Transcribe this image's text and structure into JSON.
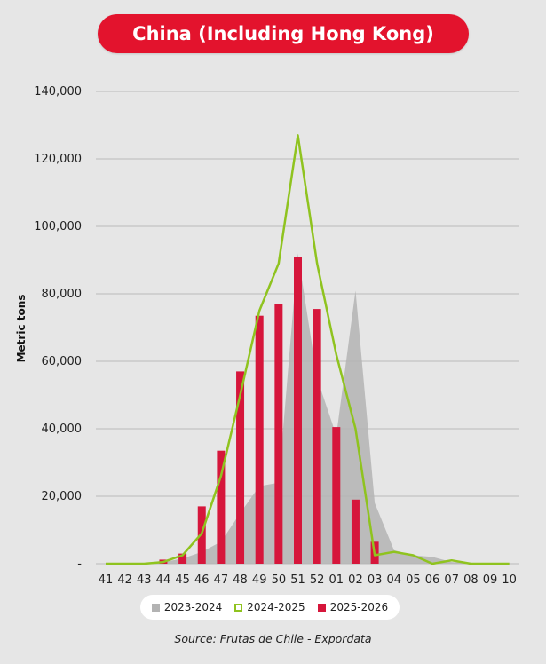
{
  "title": "China (Including Hong Kong)",
  "source": "Source: Frutas de Chile - Expordata",
  "chart_data": {
    "type": "bar",
    "title": "China (Including Hong Kong)",
    "ylabel": "Metric tons",
    "xlabel": "",
    "ylim": [
      0,
      140000
    ],
    "yticks": [
      0,
      20000,
      40000,
      60000,
      80000,
      100000,
      120000,
      140000
    ],
    "ytick_labels": [
      "-",
      "20,000",
      "40,000",
      "60,000",
      "80,000",
      "100,000",
      "120,000",
      "140,000"
    ],
    "grid": true,
    "legend_position": "bottom",
    "categories": [
      "41",
      "42",
      "43",
      "44",
      "45",
      "46",
      "47",
      "48",
      "49",
      "50",
      "51",
      "52",
      "01",
      "02",
      "03",
      "04",
      "05",
      "06",
      "07",
      "08",
      "09",
      "10"
    ],
    "series": [
      {
        "name": "2023-2024",
        "type": "area",
        "color": "#b3b3b3",
        "values": [
          0,
          0,
          200,
          500,
          1500,
          3500,
          6500,
          15000,
          23000,
          24000,
          92000,
          55000,
          38000,
          81000,
          18000,
          4000,
          2500,
          2000,
          500,
          200,
          100,
          0
        ]
      },
      {
        "name": "2024-2025",
        "type": "line",
        "color": "#8fc31f",
        "values": [
          0,
          0,
          0,
          500,
          2500,
          9000,
          26000,
          50000,
          75000,
          89000,
          127000,
          89000,
          62000,
          40000,
          2500,
          3500,
          2500,
          0,
          1000,
          0,
          0,
          0
        ]
      },
      {
        "name": "2025-2026",
        "type": "bar",
        "color": "#d6163b",
        "values": [
          null,
          null,
          null,
          1200,
          3000,
          17000,
          33500,
          57000,
          73500,
          77000,
          91000,
          75500,
          40500,
          19000,
          6500,
          null,
          null,
          null,
          null,
          null,
          null,
          null
        ]
      }
    ]
  },
  "legend": [
    {
      "label": "2023-2024",
      "color": "#b3b3b3",
      "style": "filled"
    },
    {
      "label": "2024-2025",
      "color": "#8fc31f",
      "style": "outline"
    },
    {
      "label": "2025-2026",
      "color": "#d6163b",
      "style": "filled"
    }
  ]
}
